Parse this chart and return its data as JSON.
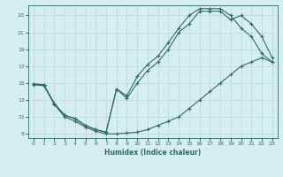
{
  "xlabel": "Humidex (Indice chaleur)",
  "bg_color": "#d7eeee",
  "grid_color": "#b8d8d8",
  "line_color": "#2d6b6b",
  "xlim": [
    -0.5,
    23.5
  ],
  "ylim": [
    8.5,
    24.2
  ],
  "xticks": [
    0,
    1,
    2,
    3,
    4,
    5,
    6,
    7,
    8,
    9,
    10,
    11,
    12,
    13,
    14,
    15,
    16,
    17,
    18,
    19,
    20,
    21,
    22,
    23
  ],
  "yticks": [
    9,
    11,
    13,
    15,
    17,
    19,
    21,
    23
  ],
  "line1_x": [
    0,
    1,
    2,
    3,
    4,
    5,
    6,
    7,
    8,
    9,
    10,
    11,
    12,
    13,
    14,
    15,
    16,
    17,
    18,
    19,
    20,
    21,
    22,
    23
  ],
  "line1_y": [
    14.8,
    14.7,
    12.5,
    11.0,
    10.5,
    9.8,
    9.3,
    9.0,
    9.0,
    9.1,
    9.2,
    9.5,
    10.0,
    10.5,
    11.0,
    12.0,
    13.0,
    14.0,
    15.0,
    16.0,
    17.0,
    17.5,
    18.0,
    17.5
  ],
  "line2_x": [
    0,
    1,
    2,
    3,
    4,
    5,
    6,
    7,
    8,
    9,
    10,
    11,
    12,
    13,
    14,
    15,
    16,
    17,
    18,
    19,
    20,
    21,
    22,
    23
  ],
  "line2_y": [
    14.9,
    14.8,
    12.6,
    11.2,
    10.8,
    10.0,
    9.5,
    9.2,
    14.3,
    13.5,
    15.8,
    17.2,
    18.2,
    19.8,
    21.5,
    23.0,
    23.8,
    23.8,
    23.8,
    23.0,
    21.5,
    20.5,
    18.5,
    17.5
  ],
  "line3_x": [
    0,
    1,
    2,
    3,
    4,
    5,
    6,
    7,
    8,
    9,
    10,
    11,
    12,
    13,
    14,
    15,
    16,
    17,
    18,
    19,
    20,
    21,
    22,
    23
  ],
  "line3_y": [
    14.9,
    14.8,
    12.6,
    11.2,
    10.8,
    10.0,
    9.5,
    9.2,
    14.3,
    13.2,
    15.0,
    16.5,
    17.5,
    19.0,
    21.0,
    22.0,
    23.5,
    23.5,
    23.5,
    22.5,
    23.0,
    22.0,
    20.5,
    18.0
  ]
}
